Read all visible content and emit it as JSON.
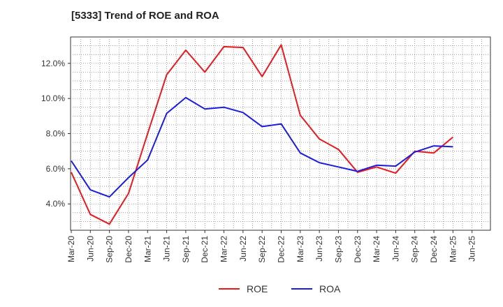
{
  "title": "[5333]  Trend of ROE and ROA",
  "chart_data": {
    "type": "line",
    "title": "[5333]  Trend of ROE and ROA",
    "xlabel": "",
    "ylabel": "",
    "ylim": [
      2.5,
      13.5
    ],
    "y_ticks": [
      4.0,
      6.0,
      8.0,
      10.0,
      12.0
    ],
    "y_tick_labels": [
      "4.0%",
      "6.0%",
      "8.0%",
      "10.0%",
      "12.0%"
    ],
    "x": [
      "Mar-20",
      "Jun-20",
      "Sep-20",
      "Dec-20",
      "Mar-21",
      "Jun-21",
      "Sep-21",
      "Dec-21",
      "Mar-22",
      "Jun-22",
      "Sep-22",
      "Dec-22",
      "Mar-23",
      "Jun-23",
      "Sep-23",
      "Dec-23",
      "Mar-24",
      "Jun-24",
      "Sep-24",
      "Dec-24",
      "Mar-25",
      "Jun-25"
    ],
    "x_tick_labels": [
      "Mar-20",
      "Jun-20",
      "Sep-20",
      "Dec-20",
      "Mar-21",
      "Jun-21",
      "Sep-21",
      "Dec-21",
      "Mar-22",
      "Jun-22",
      "Sep-22",
      "Dec-22",
      "Mar-23",
      "Jun-23",
      "Sep-23",
      "Dec-23",
      "Mar-24",
      "Jun-24",
      "Sep-24",
      "Dec-24",
      "Mar-25",
      "Jun-25"
    ],
    "grid": true,
    "legend_position": "bottom-center",
    "series": [
      {
        "name": "ROE",
        "color": "#e8191f",
        "values": [
          5.8,
          3.4,
          2.85,
          4.6,
          8.0,
          11.35,
          12.75,
          11.5,
          12.95,
          12.9,
          11.25,
          13.05,
          9.05,
          7.7,
          7.1,
          5.8,
          6.1,
          5.75,
          7.0,
          6.9,
          7.8,
          null
        ]
      },
      {
        "name": "ROA",
        "color": "#1c1ce0",
        "values": [
          6.45,
          4.8,
          4.4,
          5.5,
          6.5,
          9.15,
          10.05,
          9.4,
          9.5,
          9.2,
          8.4,
          8.55,
          6.9,
          6.35,
          6.1,
          5.85,
          6.2,
          6.15,
          6.95,
          7.3,
          7.25,
          null
        ]
      }
    ]
  }
}
